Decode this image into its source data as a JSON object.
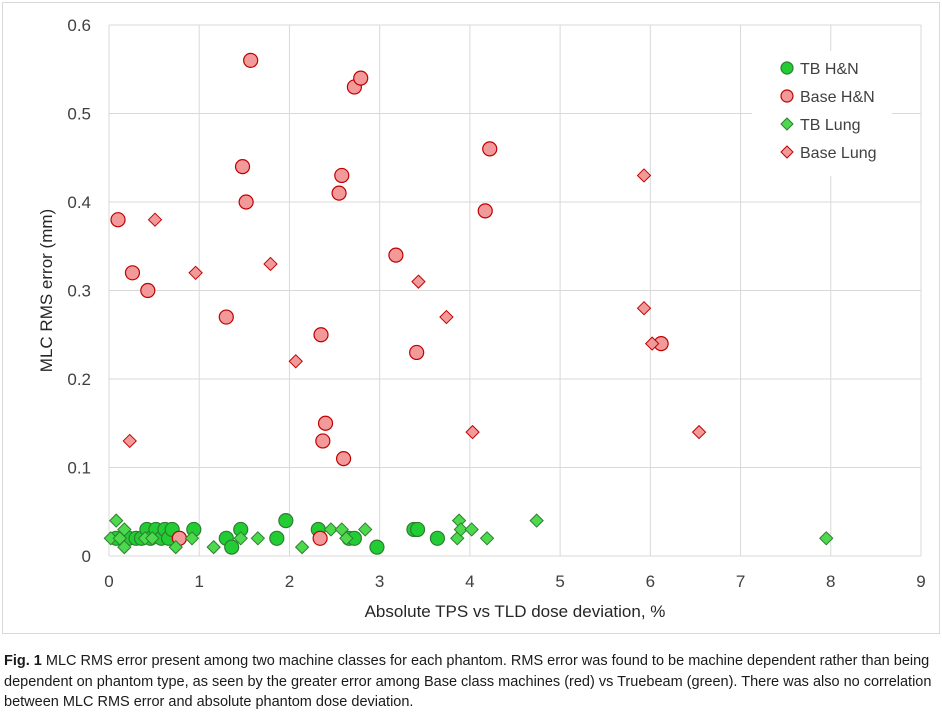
{
  "chart_data": {
    "type": "scatter",
    "xlabel": "Absolute TPS vs TLD dose deviation, %",
    "ylabel": "MLC RMS error (mm)",
    "xlim": [
      0,
      9
    ],
    "ylim": [
      0,
      0.6
    ],
    "xticks": [
      0,
      1,
      2,
      3,
      4,
      5,
      6,
      7,
      8,
      9
    ],
    "yticks": [
      0,
      0.1,
      0.2,
      0.3,
      0.4,
      0.5,
      0.6
    ],
    "ytick_labels": [
      "0",
      "0.1",
      "0.2",
      "0.3",
      "0.4",
      "0.5",
      "0.6"
    ],
    "grid": true,
    "legend_position": "top-right",
    "series": [
      {
        "name": "TB H&N",
        "marker": "circle",
        "color": "#22cc33",
        "edge": "#2e7d32",
        "points": [
          [
            0.08,
            0.02
          ],
          [
            0.22,
            0.02
          ],
          [
            0.3,
            0.02
          ],
          [
            0.36,
            0.02
          ],
          [
            0.42,
            0.03
          ],
          [
            0.46,
            0.02
          ],
          [
            0.52,
            0.03
          ],
          [
            0.58,
            0.02
          ],
          [
            0.62,
            0.03
          ],
          [
            0.66,
            0.02
          ],
          [
            0.7,
            0.03
          ],
          [
            0.78,
            0.02
          ],
          [
            0.94,
            0.03
          ],
          [
            1.3,
            0.02
          ],
          [
            1.36,
            0.01
          ],
          [
            1.46,
            0.03
          ],
          [
            1.86,
            0.02
          ],
          [
            1.96,
            0.04
          ],
          [
            2.32,
            0.03
          ],
          [
            2.66,
            0.02
          ],
          [
            2.72,
            0.02
          ],
          [
            2.97,
            0.01
          ],
          [
            3.38,
            0.03
          ],
          [
            3.42,
            0.03
          ],
          [
            3.64,
            0.02
          ]
        ]
      },
      {
        "name": "Base H&N",
        "marker": "circle",
        "color": "#f29a9a",
        "edge": "#c00000",
        "points": [
          [
            0.1,
            0.38
          ],
          [
            0.26,
            0.32
          ],
          [
            0.43,
            0.3
          ],
          [
            0.78,
            0.02
          ],
          [
            1.3,
            0.27
          ],
          [
            1.48,
            0.44
          ],
          [
            1.52,
            0.4
          ],
          [
            1.57,
            0.56
          ],
          [
            2.35,
            0.25
          ],
          [
            2.37,
            0.13
          ],
          [
            2.4,
            0.15
          ],
          [
            2.55,
            0.41
          ],
          [
            2.58,
            0.43
          ],
          [
            2.6,
            0.11
          ],
          [
            2.34,
            0.02
          ],
          [
            2.72,
            0.53
          ],
          [
            2.79,
            0.54
          ],
          [
            3.18,
            0.34
          ],
          [
            3.41,
            0.23
          ],
          [
            4.17,
            0.39
          ],
          [
            4.22,
            0.46
          ],
          [
            6.12,
            0.24
          ]
        ]
      },
      {
        "name": "TB Lung",
        "marker": "diamond",
        "color": "#4cd94c",
        "edge": "#2e7d32",
        "points": [
          [
            0.02,
            0.02
          ],
          [
            0.08,
            0.04
          ],
          [
            0.12,
            0.02
          ],
          [
            0.17,
            0.03
          ],
          [
            0.17,
            0.01
          ],
          [
            0.4,
            0.02
          ],
          [
            0.48,
            0.02
          ],
          [
            0.74,
            0.01
          ],
          [
            0.92,
            0.02
          ],
          [
            1.16,
            0.01
          ],
          [
            1.46,
            0.02
          ],
          [
            1.65,
            0.02
          ],
          [
            2.14,
            0.01
          ],
          [
            2.46,
            0.03
          ],
          [
            2.58,
            0.03
          ],
          [
            2.63,
            0.02
          ],
          [
            2.84,
            0.03
          ],
          [
            3.86,
            0.02
          ],
          [
            3.88,
            0.04
          ],
          [
            3.9,
            0.03
          ],
          [
            4.02,
            0.03
          ],
          [
            4.19,
            0.02
          ],
          [
            4.74,
            0.04
          ],
          [
            7.95,
            0.02
          ]
        ]
      },
      {
        "name": "Base Lung",
        "marker": "diamond",
        "color": "#f29a9a",
        "edge": "#c00000",
        "points": [
          [
            0.23,
            0.13
          ],
          [
            0.51,
            0.38
          ],
          [
            0.96,
            0.32
          ],
          [
            1.79,
            0.33
          ],
          [
            2.07,
            0.22
          ],
          [
            3.43,
            0.31
          ],
          [
            3.74,
            0.27
          ],
          [
            4.03,
            0.14
          ],
          [
            5.93,
            0.43
          ],
          [
            5.93,
            0.28
          ],
          [
            6.02,
            0.24
          ],
          [
            6.54,
            0.14
          ]
        ]
      }
    ]
  },
  "caption": {
    "label": "Fig. 1",
    "text": " MLC RMS error present among two machine classes for each phantom. RMS error was found to be machine dependent rather than being dependent on phantom type, as seen by the greater error among Base class machines (red) vs Truebeam (green). There was also no correlation between MLC RMS error and absolute phantom dose deviation."
  }
}
